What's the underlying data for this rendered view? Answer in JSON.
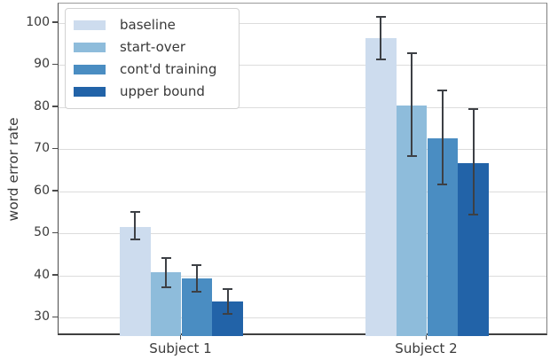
{
  "chart_data": {
    "type": "bar",
    "title": "",
    "xlabel": "",
    "ylabel": "word error rate",
    "categories": [
      "Subject 1",
      "Subject 2"
    ],
    "series": [
      {
        "name": "baseline",
        "color": "#cddcee",
        "values": [
          51.5,
          96.3
        ],
        "err_low": [
          48.6,
          91.4
        ],
        "err_high": [
          55.1,
          101.5
        ]
      },
      {
        "name": "start-over",
        "color": "#8ebcdb",
        "values": [
          40.9,
          80.4
        ],
        "err_low": [
          37.3,
          68.3
        ],
        "err_high": [
          44.2,
          92.9
        ]
      },
      {
        "name": "cont'd training",
        "color": "#4a8dc2",
        "values": [
          39.4,
          72.7
        ],
        "err_low": [
          36.2,
          61.6
        ],
        "err_high": [
          42.5,
          83.9
        ]
      },
      {
        "name": "upper bound",
        "color": "#2263a8",
        "values": [
          33.8,
          66.8
        ],
        "err_low": [
          30.9,
          54.6
        ],
        "err_high": [
          36.9,
          79.6
        ]
      }
    ],
    "yticks": [
      30,
      40,
      50,
      60,
      70,
      80,
      90,
      100
    ],
    "ylim": [
      25.6,
      104.6
    ],
    "grid": true,
    "legend_position": "upper left",
    "colors": {
      "error_bar": "#3d4045",
      "gridline": "#dcdcdc",
      "axis": "#4b4b4b",
      "tick_label": "#3a3a3a",
      "background": "#ffffff"
    }
  }
}
